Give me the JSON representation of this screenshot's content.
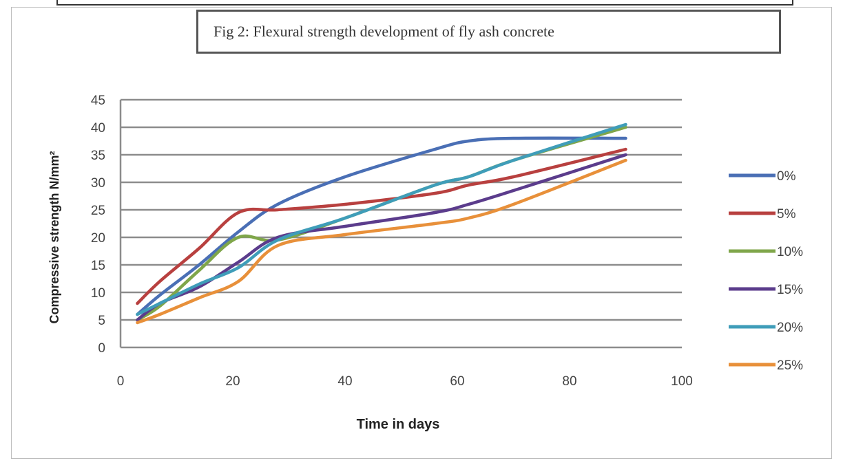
{
  "chart_data": {
    "type": "line",
    "title": "Fig 2: Flexural strength development of fly ash concrete",
    "xlabel": "Time in days",
    "ylabel": "Compressive strength N/mm²",
    "xlim": [
      0,
      100
    ],
    "ylim": [
      0,
      45
    ],
    "xticks": [
      "0",
      "20",
      "40",
      "60",
      "80",
      "100"
    ],
    "yticks": [
      "0",
      "5",
      "10",
      "15",
      "20",
      "25",
      "30",
      "35",
      "40",
      "45"
    ],
    "grid": "horizontal",
    "legend_position": "right",
    "series": [
      {
        "name": "0%",
        "color": "#4a6fb5",
        "x": [
          3,
          7,
          14,
          21,
          28,
          40,
          56,
          62,
          70,
          90
        ],
        "y": [
          6,
          9.5,
          15,
          21,
          26,
          31,
          36,
          37.5,
          38,
          38
        ]
      },
      {
        "name": "5%",
        "color": "#b8403f",
        "x": [
          3,
          7,
          14,
          21,
          28,
          40,
          56,
          62,
          70,
          90
        ],
        "y": [
          8,
          12,
          18,
          24.5,
          25,
          26,
          28,
          29.5,
          31,
          36
        ]
      },
      {
        "name": "10%",
        "color": "#7fa64a",
        "x": [
          3,
          7,
          14,
          21,
          28,
          40,
          56,
          62,
          70,
          90
        ],
        "y": [
          5,
          7.5,
          14,
          20,
          19.5,
          23.5,
          29.5,
          31,
          34,
          40
        ]
      },
      {
        "name": "15%",
        "color": "#5b3c8c",
        "x": [
          3,
          7,
          14,
          21,
          28,
          40,
          56,
          62,
          70,
          90
        ],
        "y": [
          5,
          8,
          11,
          15.5,
          20,
          22,
          24.5,
          26,
          28.5,
          35
        ]
      },
      {
        "name": "20%",
        "color": "#3f9db9",
        "x": [
          3,
          7,
          14,
          21,
          28,
          40,
          56,
          62,
          70,
          90
        ],
        "y": [
          6,
          8,
          11.5,
          14.5,
          19.5,
          23.5,
          29.5,
          31,
          34,
          40.5
        ]
      },
      {
        "name": "25%",
        "color": "#e8903a",
        "x": [
          3,
          7,
          14,
          21,
          28,
          40,
          56,
          62,
          70,
          90
        ],
        "y": [
          4.5,
          6,
          9,
          12,
          18.5,
          20.5,
          22.5,
          23.5,
          26,
          34
        ]
      }
    ]
  }
}
